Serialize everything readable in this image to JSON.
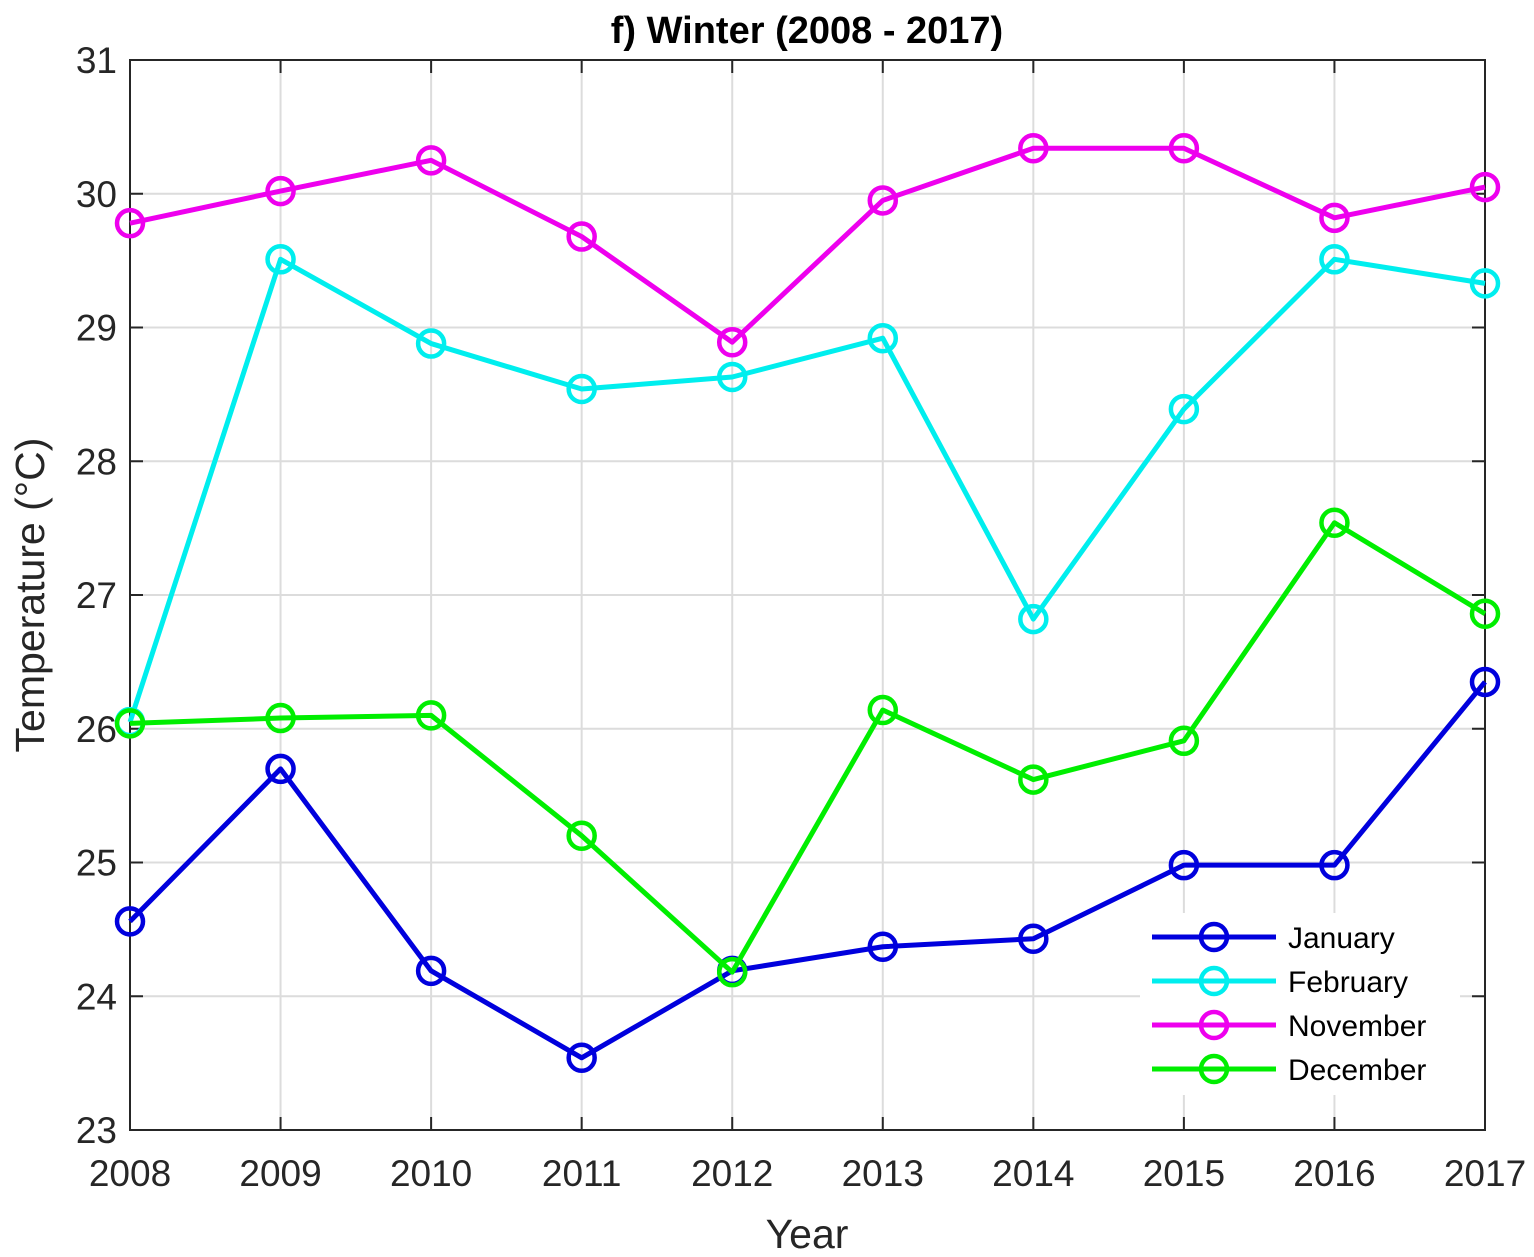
{
  "chart_data": {
    "type": "line",
    "title": "f) Winter (2008 - 2017)",
    "xlabel": "Year",
    "ylabel": "Temperature (°C)",
    "x": [
      2008,
      2009,
      2010,
      2011,
      2012,
      2013,
      2014,
      2015,
      2016,
      2017
    ],
    "xlim": [
      2008,
      2017
    ],
    "ylim": [
      23,
      31
    ],
    "yticks": [
      23,
      24,
      25,
      26,
      27,
      28,
      29,
      30,
      31
    ],
    "grid": true,
    "legend_position": "bottom-right",
    "marker": "circle",
    "series": [
      {
        "name": "January",
        "color": "#0000dd",
        "values": [
          24.56,
          25.7,
          24.19,
          23.54,
          24.19,
          24.37,
          24.43,
          24.98,
          24.98,
          26.35
        ]
      },
      {
        "name": "February",
        "color": "#00eeee",
        "values": [
          26.05,
          29.51,
          28.88,
          28.54,
          28.63,
          28.92,
          26.82,
          28.39,
          29.51,
          29.33
        ]
      },
      {
        "name": "November",
        "color": "#ee00ee",
        "values": [
          29.78,
          30.02,
          30.25,
          29.68,
          28.89,
          29.95,
          30.34,
          30.34,
          29.82,
          30.05
        ]
      },
      {
        "name": "December",
        "color": "#00ee00",
        "values": [
          26.04,
          26.08,
          26.1,
          25.2,
          24.18,
          26.14,
          25.62,
          25.91,
          27.54,
          26.86
        ]
      }
    ]
  }
}
